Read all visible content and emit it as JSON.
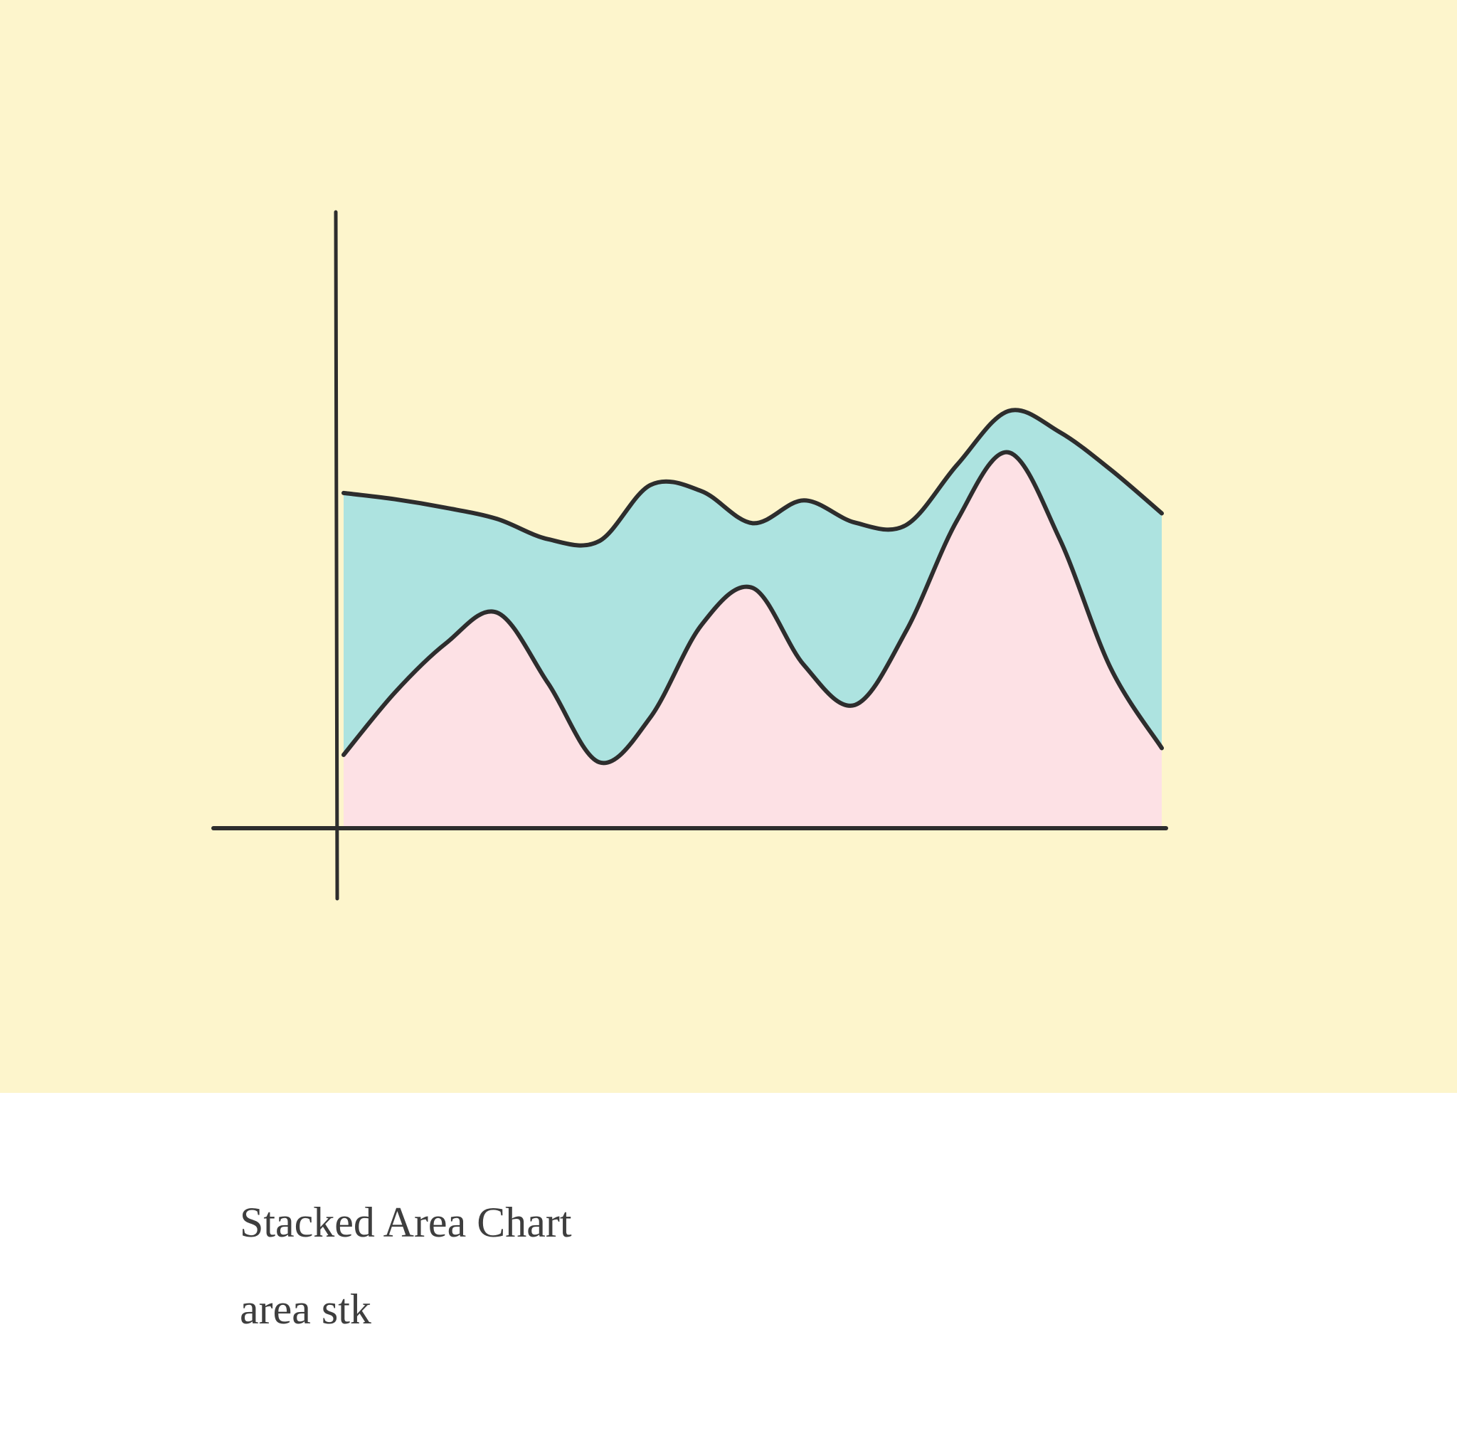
{
  "chart_data": {
    "type": "stacked-area",
    "title": "Stacked Area Chart",
    "subtitle": "area stk",
    "x": [
      0,
      1,
      2,
      3,
      4,
      5,
      6,
      7,
      8,
      9,
      10,
      11,
      12,
      13,
      14,
      15,
      16
    ],
    "xlim": [
      0,
      16
    ],
    "ylim": [
      0,
      100
    ],
    "series": [
      {
        "color": "#fde1e5",
        "values": [
          11.9,
          22,
          30,
          35,
          23.5,
          10.7,
          18,
          33,
          39,
          26.5,
          20,
          32,
          50,
          61,
          47,
          26,
          13
        ]
      },
      {
        "color": "#ade3e0",
        "values": [
          42.5,
          31.4,
          22,
          15.2,
          23.4,
          35.9,
          37.7,
          21.7,
          10.5,
          26.7,
          29.6,
          17.2,
          9,
          6.7,
          17.3,
          32.2,
          38.1
        ]
      }
    ]
  }
}
